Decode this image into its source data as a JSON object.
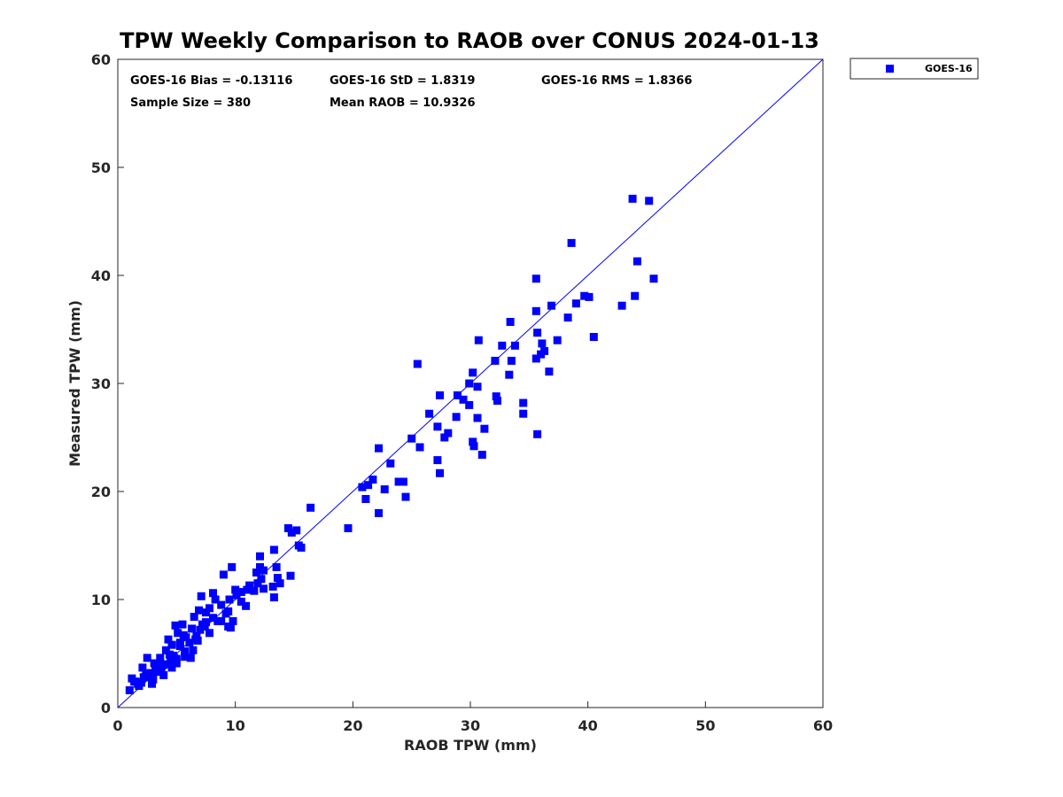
{
  "colors": {
    "series": "#0000ff",
    "ref_line": "#0000ff",
    "axis": "#262626",
    "background": "#ffffff"
  },
  "chart_data": {
    "type": "scatter",
    "title": "TPW Weekly Comparison to RAOB over CONUS 2024-01-13",
    "xlabel": "RAOB TPW (mm)",
    "ylabel": "Measured TPW (mm)",
    "xlim": [
      0,
      60
    ],
    "ylim": [
      0,
      60
    ],
    "xticks": [
      0,
      10,
      20,
      30,
      40,
      50,
      60
    ],
    "yticks": [
      0,
      10,
      20,
      30,
      40,
      50,
      60
    ],
    "xtick_labels": [
      "0",
      "10",
      "20",
      "30",
      "40",
      "50",
      "60"
    ],
    "ytick_labels": [
      "0",
      "10",
      "20",
      "30",
      "40",
      "50",
      "60"
    ],
    "grid": false,
    "legend": {
      "placement": "outside-top-right",
      "entries": [
        "GOES-16"
      ]
    },
    "reference_line": {
      "name": "1:1 line",
      "x": [
        0,
        60
      ],
      "y": [
        0,
        60
      ]
    },
    "stats": {
      "bias": "GOES-16 Bias = -0.13116",
      "std": "GOES-16 StD = 1.8319",
      "rms": "GOES-16 RMS = 1.8366",
      "sample": "Sample Size = 380",
      "mean": "Mean RAOB = 10.9326"
    },
    "series": [
      {
        "name": "GOES-16",
        "marker": "square",
        "x": [
          43.8,
          45.2,
          38.6,
          44.2,
          45.6,
          35.6,
          39.7,
          40.1,
          39.0,
          36.9,
          42.9,
          44.0,
          35.6,
          38.3,
          33.4,
          35.7,
          40.5,
          37.4,
          30.7,
          32.7,
          33.8,
          36.1,
          36.3,
          36.0,
          32.1,
          35.6,
          33.5,
          36.7,
          25.5,
          29.9,
          33.3,
          28.9,
          30.2,
          27.4,
          30.6,
          32.2,
          32.3,
          34.5,
          29.4,
          29.9,
          28.8,
          26.5,
          34.5,
          27.2,
          28.1,
          30.6,
          30.3,
          31.2,
          35.7,
          27.8,
          25.0,
          30.2,
          25.7,
          31.0,
          27.2,
          22.2,
          23.2,
          27.4,
          23.9,
          21.7,
          22.7,
          24.3,
          21.3,
          20.8,
          24.5,
          21.1,
          22.2,
          19.6,
          16.4,
          14.8,
          15.2,
          14.5,
          15.6,
          15.4,
          13.3,
          12.1,
          12.1,
          13.5,
          13.6,
          12.4,
          14.7,
          13.8,
          13.2,
          13.3,
          9.7,
          11.8,
          9.0,
          10.0,
          11.9,
          12.2,
          10.5,
          11.6,
          10.1,
          11.2,
          12.4,
          11.0,
          10.9,
          9.5,
          8.1,
          9.4,
          10.5,
          9.2,
          8.8,
          7.1,
          8.3,
          7.5,
          7.8,
          9.4,
          9.6,
          6.9,
          8.1,
          7.5,
          9.8,
          6.5,
          7.2,
          7.8,
          5.5,
          6.3,
          6.7,
          6.8,
          4.9,
          5.8,
          5.1,
          6.4,
          5.3,
          5.7,
          4.3,
          4.6,
          5.7,
          4.8,
          5.0,
          6.2,
          4.1,
          4.4,
          5.0,
          4.6,
          3.6,
          3.8,
          4.2,
          3.1,
          3.5,
          3.3,
          3.9,
          2.7,
          2.4,
          3.0,
          2.1,
          2.6,
          2.9,
          1.5,
          1.8,
          2.3,
          1.4,
          1.2,
          1.0,
          2.0,
          3.3,
          4.0,
          5.3,
          6.1,
          7.0,
          8.5,
          2.8,
          3.7,
          4.7,
          1.7,
          2.2,
          2.5,
          3.2,
          5.6,
          6.6,
          7.4,
          8.8,
          3.4,
          4.5
        ],
        "y": [
          47.1,
          46.9,
          43.0,
          41.3,
          39.7,
          39.7,
          38.1,
          38.0,
          37.4,
          37.2,
          37.2,
          38.1,
          36.7,
          36.1,
          35.7,
          34.7,
          34.3,
          34.0,
          34.0,
          33.5,
          33.5,
          33.7,
          33.0,
          32.7,
          32.1,
          32.3,
          32.1,
          31.1,
          31.8,
          30.0,
          30.8,
          28.9,
          31.0,
          28.9,
          29.7,
          28.8,
          28.4,
          28.2,
          28.5,
          28.0,
          26.9,
          27.2,
          27.2,
          26.0,
          25.4,
          26.8,
          24.2,
          25.8,
          25.3,
          25.0,
          24.9,
          24.6,
          24.1,
          23.4,
          22.9,
          24.0,
          22.6,
          21.7,
          20.9,
          21.1,
          20.2,
          20.9,
          20.6,
          20.4,
          19.5,
          19.3,
          18.0,
          16.6,
          18.5,
          16.2,
          16.4,
          16.6,
          14.8,
          15.0,
          14.6,
          14.0,
          13.0,
          13.0,
          12.0,
          12.7,
          12.2,
          11.5,
          11.2,
          10.2,
          13.0,
          12.5,
          12.3,
          10.9,
          11.5,
          11.9,
          10.7,
          10.8,
          10.4,
          11.3,
          11.0,
          10.9,
          9.4,
          10.0,
          10.6,
          8.9,
          9.8,
          8.7,
          9.5,
          10.3,
          10.0,
          8.8,
          9.2,
          7.5,
          7.4,
          9.0,
          8.3,
          7.9,
          8.0,
          8.4,
          7.7,
          6.9,
          7.7,
          7.3,
          6.6,
          6.2,
          7.6,
          6.5,
          6.9,
          5.3,
          6.0,
          4.7,
          6.3,
          5.8,
          5.2,
          4.6,
          4.5,
          4.6,
          5.3,
          4.9,
          4.1,
          3.7,
          4.6,
          3.9,
          4.0,
          4.1,
          3.5,
          3.3,
          3.0,
          2.9,
          3.0,
          2.6,
          3.7,
          3.1,
          2.2,
          2.4,
          2.0,
          2.8,
          2.4,
          2.7,
          1.6,
          2.3,
          3.4,
          4.0,
          5.7,
          6.0,
          7.2,
          8.0,
          3.2,
          3.6,
          4.8,
          2.2,
          2.8,
          4.6,
          3.5,
          6.7,
          6.3,
          7.5,
          8.0,
          3.9,
          4.4
        ]
      }
    ]
  }
}
